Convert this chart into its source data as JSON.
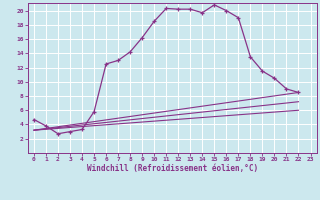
{
  "xlabel": "Windchill (Refroidissement éolien,°C)",
  "bg_color": "#cce8ee",
  "line_color": "#883388",
  "grid_color": "#ffffff",
  "xlim": [
    -0.5,
    23.5
  ],
  "ylim": [
    0,
    21
  ],
  "xticks": [
    0,
    1,
    2,
    3,
    4,
    5,
    6,
    7,
    8,
    9,
    10,
    11,
    12,
    13,
    14,
    15,
    16,
    17,
    18,
    19,
    20,
    21,
    22,
    23
  ],
  "yticks": [
    2,
    4,
    6,
    8,
    10,
    12,
    14,
    16,
    18,
    20
  ],
  "line1_x": [
    0,
    1,
    2,
    3,
    4,
    5,
    6,
    7,
    8,
    9,
    10,
    11,
    12,
    13,
    14,
    15,
    16,
    17,
    18,
    19,
    20,
    21,
    22
  ],
  "line1_y": [
    4.7,
    3.8,
    2.7,
    3.0,
    3.3,
    5.8,
    12.5,
    13.0,
    14.2,
    16.2,
    18.5,
    20.3,
    20.2,
    20.2,
    19.7,
    20.8,
    20.0,
    19.0,
    13.5,
    11.5,
    10.5,
    9.0,
    8.5
  ],
  "line2_x": [
    0,
    22
  ],
  "line2_y": [
    3.2,
    8.5
  ],
  "line3_x": [
    0,
    22
  ],
  "line3_y": [
    3.2,
    6.0
  ],
  "line4_x": [
    0,
    22
  ],
  "line4_y": [
    3.2,
    7.2
  ]
}
